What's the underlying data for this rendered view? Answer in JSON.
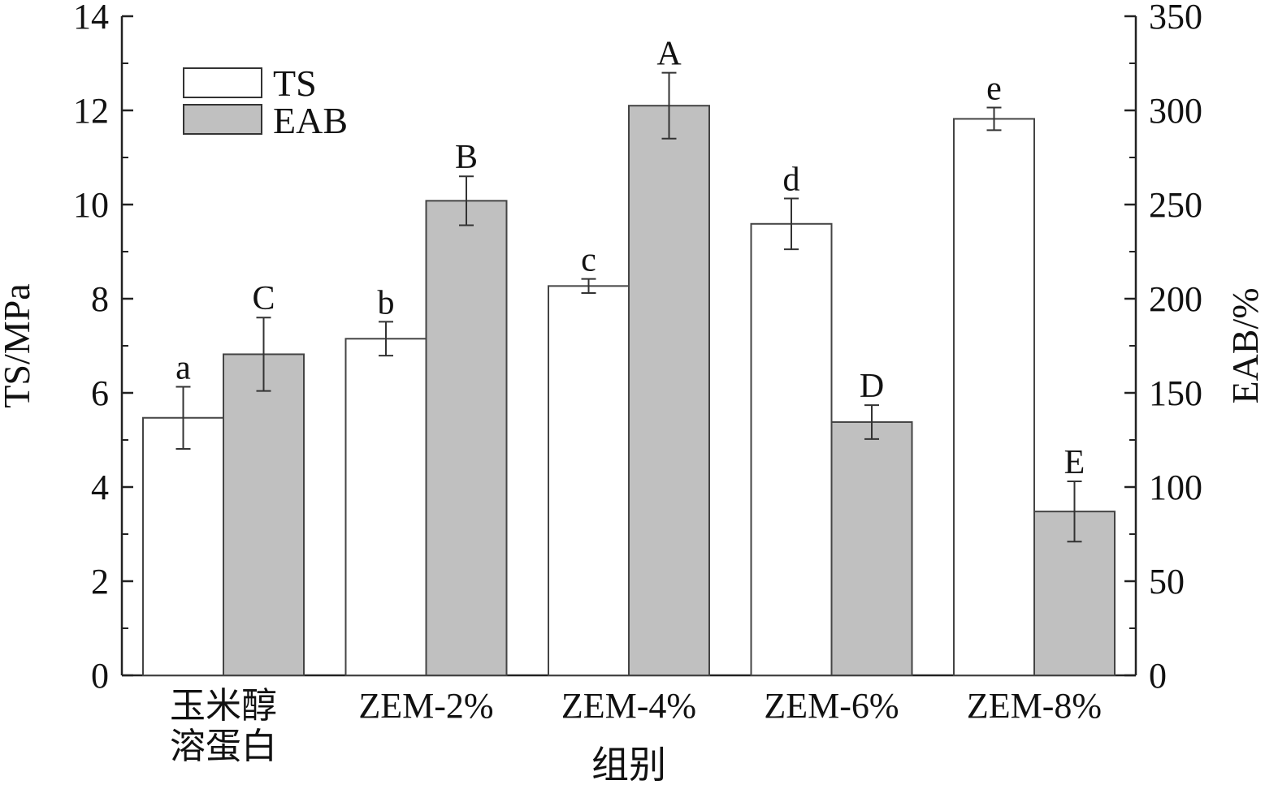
{
  "chart_data": {
    "type": "bar",
    "categories": [
      "玉米醇\n溶蛋白",
      "ZEM-2%",
      "ZEM-4%",
      "ZEM-6%",
      "ZEM-8%"
    ],
    "xlabel": "组别",
    "y_left": {
      "label": "TS/MPa",
      "lim": [
        0,
        14
      ],
      "ticks": [
        0,
        2,
        4,
        6,
        8,
        10,
        12,
        14
      ]
    },
    "y_right": {
      "label": "EAB/%",
      "lim": [
        0,
        350
      ],
      "ticks": [
        0,
        50,
        100,
        150,
        200,
        250,
        300,
        350
      ]
    },
    "series": [
      {
        "name": "TS",
        "axis": "left",
        "color": "#ffffff",
        "values": [
          5.47,
          7.15,
          8.27,
          9.59,
          11.82
        ],
        "errors": [
          0.66,
          0.36,
          0.15,
          0.54,
          0.24
        ],
        "labels": [
          "a",
          "b",
          "c",
          "d",
          "e"
        ]
      },
      {
        "name": "EAB",
        "axis": "right",
        "color": "#c0c0c0",
        "values": [
          170.5,
          252.0,
          302.5,
          134.5,
          87.0
        ],
        "errors": [
          19.5,
          13.0,
          17.5,
          9.0,
          16.0
        ],
        "labels": [
          "C",
          "B",
          "A",
          "D",
          "E"
        ]
      }
    ],
    "legend_position": "top-left",
    "grid": false
  }
}
